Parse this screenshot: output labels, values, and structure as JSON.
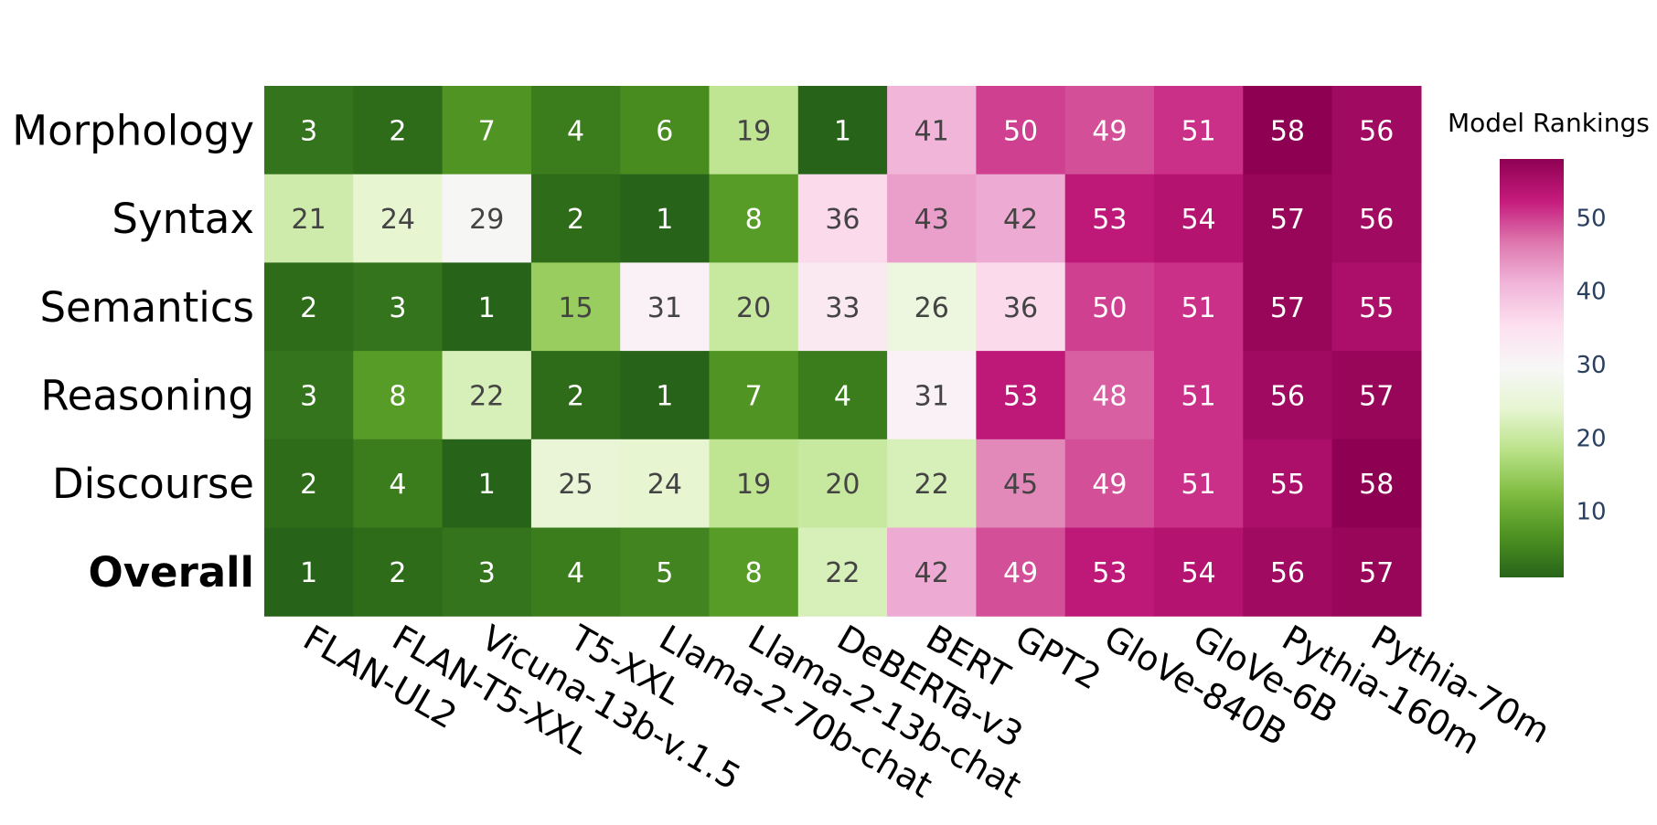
{
  "chart_data": {
    "type": "heatmap",
    "colorbar_title": "Model Rankings",
    "colorbar_ticks": [
      10,
      20,
      30,
      40,
      50
    ],
    "zmin": 1,
    "zmax": 58,
    "colorscale": "PiYG-reversed",
    "rows": [
      "Morphology",
      "Syntax",
      "Semantics",
      "Reasoning",
      "Discourse",
      "Overall"
    ],
    "bold_rows": [
      "Overall"
    ],
    "columns": [
      "FLAN-UL2",
      "FLAN-T5-XXL",
      "Vicuna-13b-v.1.5",
      "T5-XXL",
      "Llama-2-70b-chat",
      "Llama-2-13b-chat",
      "DeBERTa-v3",
      "BERT",
      "GPT2",
      "GloVe-840B",
      "GloVe-6B",
      "Pythia-160m",
      "Pythia-70m"
    ],
    "values": [
      [
        3,
        2,
        7,
        4,
        6,
        19,
        1,
        41,
        50,
        49,
        51,
        58,
        56
      ],
      [
        21,
        24,
        29,
        2,
        1,
        8,
        36,
        43,
        42,
        53,
        54,
        57,
        56
      ],
      [
        2,
        3,
        1,
        15,
        31,
        20,
        33,
        26,
        36,
        50,
        51,
        57,
        55
      ],
      [
        3,
        8,
        22,
        2,
        1,
        7,
        4,
        31,
        53,
        48,
        51,
        56,
        57
      ],
      [
        2,
        4,
        1,
        25,
        24,
        19,
        20,
        22,
        45,
        49,
        51,
        55,
        58
      ],
      [
        1,
        2,
        3,
        4,
        5,
        8,
        22,
        42,
        49,
        53,
        54,
        56,
        57
      ]
    ]
  }
}
